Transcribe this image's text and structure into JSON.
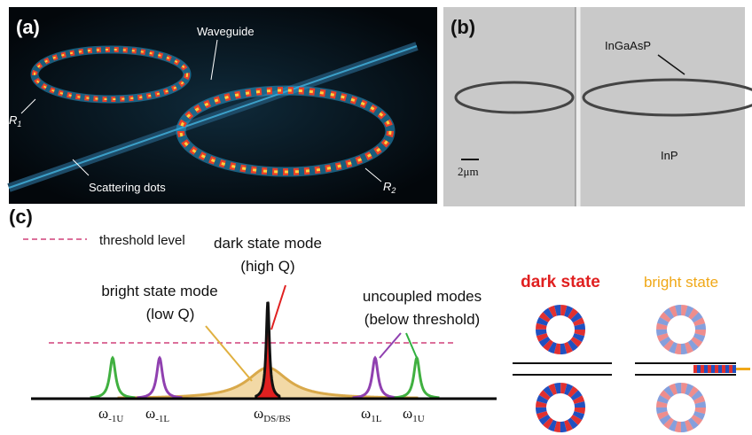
{
  "panels": {
    "a": {
      "label": "(a)",
      "waveguide": "Waveguide",
      "r1": {
        "symbol": "R",
        "sub": "1"
      },
      "scattering": "Scattering dots",
      "r2": {
        "symbol": "R",
        "sub": "2"
      }
    },
    "b": {
      "label": "(b)",
      "ingaasp": "InGaAsP",
      "scale": "2μm",
      "inp": "InP"
    },
    "c": {
      "label": "(c)",
      "threshold": "threshold level",
      "dark_mode": [
        "dark state mode",
        "(high Q)"
      ],
      "bright_mode": [
        "bright state mode",
        "(low Q)"
      ],
      "uncoupled": [
        "uncoupled modes",
        "(below threshold)"
      ],
      "frequencies": [
        {
          "symbol": "ω",
          "sub": "-1U"
        },
        {
          "symbol": "ω",
          "sub": "-1L"
        },
        {
          "symbol": "ω",
          "sub": "DS/BS"
        },
        {
          "symbol": "ω",
          "sub": "1L"
        },
        {
          "symbol": "ω",
          "sub": "1U"
        }
      ],
      "dark_state": "dark state",
      "bright_state": "bright state"
    }
  }
}
